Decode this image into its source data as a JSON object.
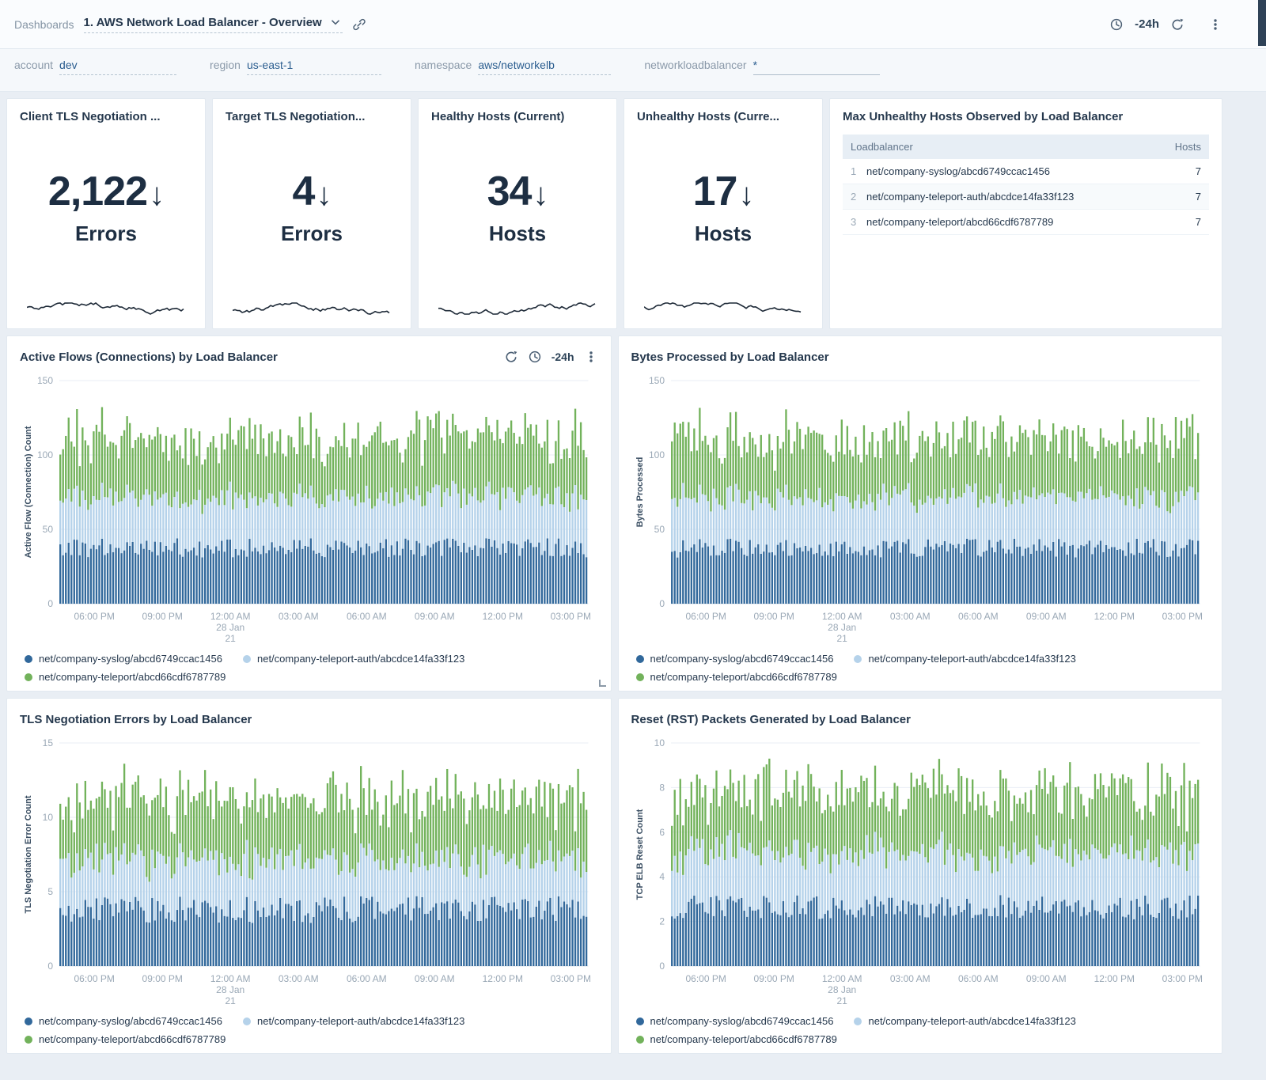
{
  "topbar": {
    "dashboards_label": "Dashboards",
    "dashboard_title": "1. AWS Network Load Balancer - Overview",
    "time_range": "-24h"
  },
  "filters": [
    {
      "label": "account",
      "value": "dev"
    },
    {
      "label": "region",
      "value": "us-east-1"
    },
    {
      "label": "namespace",
      "value": "aws/networkelb"
    },
    {
      "label": "networkloadbalancer",
      "value": "*"
    }
  ],
  "stat_panels": [
    {
      "title": "Client TLS Negotiation ...",
      "value": "2,122",
      "trend": "down",
      "unit": "Errors"
    },
    {
      "title": "Target TLS Negotiation...",
      "value": "4",
      "trend": "down",
      "unit": "Errors"
    },
    {
      "title": "Healthy Hosts (Current)",
      "value": "34",
      "trend": "down",
      "unit": "Hosts"
    },
    {
      "title": "Unhealthy Hosts (Curre...",
      "value": "17",
      "trend": "down",
      "unit": "Hosts"
    }
  ],
  "table_panel": {
    "title": "Max Unhealthy Hosts Observed by Load Balancer",
    "columns": [
      "Loadbalancer",
      "Hosts"
    ],
    "rows": [
      {
        "index": "1",
        "loadbalancer": "net/company-syslog/abcd6749ccac1456",
        "hosts": "7"
      },
      {
        "index": "2",
        "loadbalancer": "net/company-teleport-auth/abcdce14fa33f123",
        "hosts": "7"
      },
      {
        "index": "3",
        "loadbalancer": "net/company-teleport/abcd66cdf6787789",
        "hosts": "7"
      }
    ]
  },
  "chart_toolbar": {
    "time_range": "-24h"
  },
  "colors": {
    "series1": "#31689b",
    "series2": "#b5d2ea",
    "series3": "#72b25b",
    "spark": "#1c2836",
    "accent": "#2a5d8f"
  },
  "chart_data": [
    {
      "type": "bar",
      "stacked": true,
      "grid": true,
      "legend_position": "bottom",
      "title": "Active Flows (Connections) by Load Balancer",
      "ylabel": "Active Flow (Connection) Count",
      "xlabel": "",
      "ylim": [
        0,
        150
      ],
      "yticks": [
        0,
        50,
        100,
        150
      ],
      "xticks": [
        "06:00 PM",
        "09:00 PM",
        "12:00 AM|28 Jan|21",
        "03:00 AM",
        "06:00 AM",
        "09:00 AM",
        "12:00 PM",
        "03:00 PM"
      ],
      "series": [
        {
          "name": "net/company-syslog/abcd6749ccac1456",
          "color": "#31689b",
          "approx_range": [
            31,
            44
          ]
        },
        {
          "name": "net/company-teleport-auth/abcdce14fa33f123",
          "color": "#b5d2ea",
          "approx_range": [
            29,
            39
          ]
        },
        {
          "name": "net/company-teleport/abcd66cdf6787789",
          "color": "#72b25b",
          "approx_range": [
            26,
            52
          ]
        }
      ]
    },
    {
      "type": "bar",
      "stacked": true,
      "grid": true,
      "legend_position": "bottom",
      "title": "Bytes Processed by Load Balancer",
      "ylabel": "Bytes Processed",
      "xlabel": "",
      "ylim": [
        0,
        150
      ],
      "yticks": [
        0,
        50,
        100,
        150
      ],
      "xticks": [
        "06:00 PM",
        "09:00 PM",
        "12:00 AM|28 Jan|21",
        "03:00 AM",
        "06:00 AM",
        "09:00 AM",
        "12:00 PM",
        "03:00 PM"
      ],
      "series": [
        {
          "name": "net/company-syslog/abcd6749ccac1456",
          "color": "#31689b",
          "approx_range": [
            31,
            44
          ]
        },
        {
          "name": "net/company-teleport-auth/abcdce14fa33f123",
          "color": "#b5d2ea",
          "approx_range": [
            29,
            39
          ]
        },
        {
          "name": "net/company-teleport/abcd66cdf6787789",
          "color": "#72b25b",
          "approx_range": [
            26,
            52
          ]
        }
      ]
    },
    {
      "type": "bar",
      "stacked": true,
      "grid": true,
      "legend_position": "bottom",
      "title": "TLS Negotiation Errors by Load Balancer",
      "ylabel": "TLS Negotiation Error Count",
      "xlabel": "",
      "ylim": [
        0,
        15
      ],
      "yticks": [
        0,
        5,
        10,
        15
      ],
      "xticks": [
        "06:00 PM",
        "09:00 PM",
        "12:00 AM|28 Jan|21",
        "03:00 AM",
        "06:00 AM",
        "09:00 AM",
        "12:00 PM",
        "03:00 PM"
      ],
      "series": [
        {
          "name": "net/company-syslog/abcd6749ccac1456",
          "color": "#31689b",
          "approx_range": [
            2.9,
            4.7
          ]
        },
        {
          "name": "net/company-teleport-auth/abcdce14fa33f123",
          "color": "#b5d2ea",
          "approx_range": [
            2.7,
            3.9
          ]
        },
        {
          "name": "net/company-teleport/abcd66cdf6787789",
          "color": "#72b25b",
          "approx_range": [
            2.5,
            5.4
          ]
        }
      ]
    },
    {
      "type": "bar",
      "stacked": true,
      "grid": true,
      "legend_position": "bottom",
      "title": "Reset (RST) Packets Generated by Load Balancer",
      "ylabel": "TCP ELB Reset Count",
      "xlabel": "",
      "ylim": [
        0,
        10
      ],
      "yticks": [
        0,
        2,
        4,
        6,
        8,
        10
      ],
      "xticks": [
        "06:00 PM",
        "09:00 PM",
        "12:00 AM|28 Jan|21",
        "03:00 AM",
        "06:00 AM",
        "09:00 AM",
        "12:00 PM",
        "03:00 PM"
      ],
      "series": [
        {
          "name": "net/company-syslog/abcd6749ccac1456",
          "color": "#31689b",
          "approx_range": [
            2.1,
            3.2
          ]
        },
        {
          "name": "net/company-teleport-auth/abcdce14fa33f123",
          "color": "#b5d2ea",
          "approx_range": [
            1.9,
            3.0
          ]
        },
        {
          "name": "net/company-teleport/abcd66cdf6787789",
          "color": "#72b25b",
          "approx_range": [
            1.7,
            3.7
          ]
        }
      ]
    }
  ]
}
